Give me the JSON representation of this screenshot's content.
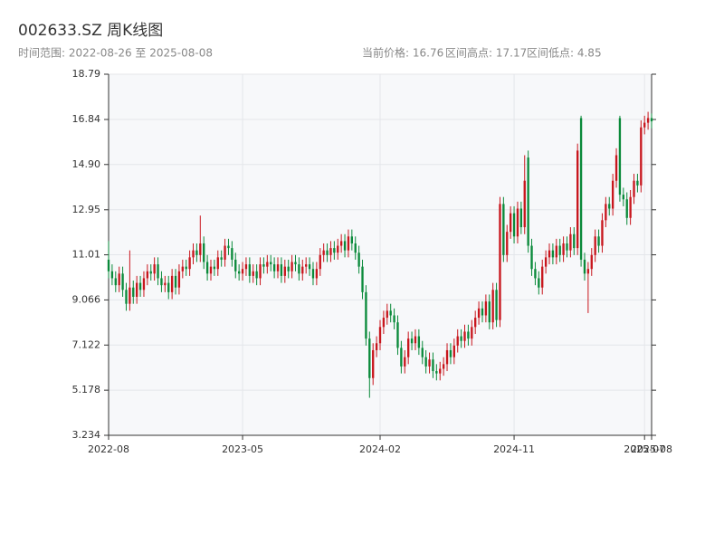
{
  "chart_data": {
    "type": "candlestick",
    "title": "002633.SZ 周K线图",
    "subtitle": "时间范围: 2022-08-26 至 2025-08-08",
    "info": [
      "当前价格: 16.76",
      "区间高点: 17.17",
      "区间低点: 4.85"
    ],
    "up_color": "#c8161d",
    "down_color": "#0a8a3a",
    "grid": true,
    "ylim": [
      3.234,
      18.79
    ],
    "yticks": [
      3.234,
      5.178,
      7.122,
      9.066,
      11.01,
      12.95,
      {
        "value": 14.9,
        "label": "14.90"
      },
      16.84,
      18.79
    ],
    "xticks": [
      {
        "value": "2022-08-26",
        "label": "2022-08"
      },
      {
        "value": "2023-05-19",
        "label": "2023-05"
      },
      {
        "value": "2024-02-16",
        "label": "2024-02"
      },
      {
        "value": "2024-11-08",
        "label": "2024-11"
      },
      {
        "value": "2025-07-25",
        "label": "2025-07"
      },
      {
        "value": "2025-08-08",
        "label": "2025-08"
      }
    ],
    "x": [
      "2022-08-26",
      "2022-09-02",
      "2022-09-09",
      "2022-09-16",
      "2022-09-23",
      "2022-09-30",
      "2022-10-07",
      "2022-10-14",
      "2022-10-21",
      "2022-10-28",
      "2022-11-04",
      "2022-11-11",
      "2022-11-18",
      "2022-11-25",
      "2022-12-02",
      "2022-12-09",
      "2022-12-16",
      "2022-12-23",
      "2022-12-30",
      "2023-01-06",
      "2023-01-13",
      "2023-01-20",
      "2023-01-27",
      "2023-02-03",
      "2023-02-10",
      "2023-02-17",
      "2023-02-24",
      "2023-03-03",
      "2023-03-10",
      "2023-03-17",
      "2023-03-24",
      "2023-03-31",
      "2023-04-07",
      "2023-04-14",
      "2023-04-21",
      "2023-04-28",
      "2023-05-05",
      "2023-05-12",
      "2023-05-19",
      "2023-05-26",
      "2023-06-02",
      "2023-06-09",
      "2023-06-16",
      "2023-06-23",
      "2023-06-30",
      "2023-07-07",
      "2023-07-14",
      "2023-07-21",
      "2023-07-28",
      "2023-08-04",
      "2023-08-11",
      "2023-08-18",
      "2023-08-25",
      "2023-09-01",
      "2023-09-08",
      "2023-09-15",
      "2023-09-22",
      "2023-09-29",
      "2023-10-06",
      "2023-10-13",
      "2023-10-20",
      "2023-10-27",
      "2023-11-03",
      "2023-11-10",
      "2023-11-17",
      "2023-11-24",
      "2023-12-01",
      "2023-12-08",
      "2023-12-15",
      "2023-12-22",
      "2023-12-29",
      "2024-01-05",
      "2024-01-12",
      "2024-01-19",
      "2024-01-26",
      "2024-02-02",
      "2024-02-09",
      "2024-02-16",
      "2024-02-23",
      "2024-03-01",
      "2024-03-08",
      "2024-03-15",
      "2024-03-22",
      "2024-03-29",
      "2024-04-05",
      "2024-04-12",
      "2024-04-19",
      "2024-04-26",
      "2024-05-03",
      "2024-05-10",
      "2024-05-17",
      "2024-05-24",
      "2024-05-31",
      "2024-06-07",
      "2024-06-14",
      "2024-06-21",
      "2024-06-28",
      "2024-07-05",
      "2024-07-12",
      "2024-07-19",
      "2024-07-26",
      "2024-08-02",
      "2024-08-09",
      "2024-08-16",
      "2024-08-23",
      "2024-08-30",
      "2024-09-06",
      "2024-09-13",
      "2024-09-20",
      "2024-09-27",
      "2024-10-04",
      "2024-10-11",
      "2024-10-18",
      "2024-10-25",
      "2024-11-01",
      "2024-11-08",
      "2024-11-15",
      "2024-11-22",
      "2024-11-29",
      "2024-12-06",
      "2024-12-13",
      "2024-12-20",
      "2024-12-27",
      "2025-01-03",
      "2025-01-10",
      "2025-01-17",
      "2025-01-24",
      "2025-01-31",
      "2025-02-07",
      "2025-02-14",
      "2025-02-21",
      "2025-02-28",
      "2025-03-07",
      "2025-03-14",
      "2025-03-21",
      "2025-03-28",
      "2025-04-04",
      "2025-04-11",
      "2025-04-18",
      "2025-04-25",
      "2025-05-02",
      "2025-05-09",
      "2025-05-16",
      "2025-05-23",
      "2025-05-30",
      "2025-06-06",
      "2025-06-13",
      "2025-06-20",
      "2025-06-27",
      "2025-07-04",
      "2025-07-11",
      "2025-07-18",
      "2025-07-25",
      "2025-08-01",
      "2025-08-08"
    ],
    "open": [
      10.8,
      10.3,
      10.0,
      9.7,
      10.2,
      9.5,
      8.9,
      9.6,
      9.2,
      9.8,
      9.5,
      10.0,
      10.3,
      10.2,
      10.6,
      10.0,
      9.7,
      9.8,
      9.4,
      10.1,
      9.6,
      10.3,
      10.5,
      10.4,
      10.9,
      11.2,
      11.0,
      11.5,
      10.7,
      10.2,
      10.5,
      10.4,
      10.9,
      10.8,
      11.4,
      11.3,
      10.8,
      10.3,
      10.2,
      10.4,
      10.6,
      10.1,
      10.3,
      10.0,
      10.6,
      10.5,
      10.7,
      10.6,
      10.3,
      10.6,
      10.1,
      10.5,
      10.3,
      10.7,
      10.6,
      10.2,
      10.5,
      10.6,
      10.4,
      10.0,
      10.4,
      11.0,
      11.2,
      11.0,
      11.3,
      11.1,
      11.4,
      11.6,
      11.2,
      11.8,
      11.5,
      11.1,
      10.5,
      9.4,
      7.4,
      5.7,
      6.9,
      7.2,
      7.9,
      8.3,
      8.6,
      8.4,
      8.1,
      7.0,
      6.2,
      6.6,
      7.4,
      7.2,
      7.5,
      7.0,
      6.6,
      6.2,
      6.5,
      6.0,
      5.9,
      6.1,
      6.3,
      6.9,
      6.6,
      7.1,
      7.5,
      7.3,
      7.7,
      7.4,
      7.9,
      8.3,
      8.7,
      8.4,
      9.0,
      8.1,
      9.5,
      8.2,
      13.2,
      11.0,
      12.0,
      12.8,
      11.8,
      13.0,
      12.2,
      15.2,
      11.4,
      10.4,
      10.0,
      9.6,
      10.5,
      10.9,
      11.2,
      10.9,
      11.4,
      11.0,
      11.5,
      11.2,
      11.9,
      11.3,
      16.9,
      10.8,
      10.2,
      10.4,
      11.0,
      11.8,
      11.4,
      12.5,
      13.2,
      13.0,
      14.2,
      16.9,
      13.6,
      13.4,
      12.6,
      13.5,
      14.2,
      14.0,
      16.5,
      16.7,
      16.9
    ],
    "high": [
      11.6,
      10.6,
      10.3,
      10.5,
      10.5,
      9.8,
      11.2,
      9.9,
      10.1,
      10.1,
      10.3,
      10.6,
      10.6,
      10.9,
      10.9,
      10.3,
      10.1,
      10.1,
      10.4,
      10.4,
      10.6,
      10.8,
      10.8,
      11.2,
      11.5,
      11.5,
      12.7,
      11.8,
      11.0,
      10.8,
      10.8,
      11.2,
      11.2,
      11.7,
      11.7,
      11.6,
      11.1,
      10.6,
      10.7,
      10.9,
      10.9,
      10.6,
      10.6,
      10.9,
      10.9,
      11.0,
      11.0,
      10.9,
      10.9,
      10.9,
      10.8,
      10.8,
      11.0,
      11.0,
      10.9,
      10.8,
      10.9,
      10.9,
      10.7,
      10.7,
      11.3,
      11.5,
      11.5,
      11.6,
      11.6,
      11.7,
      11.9,
      11.9,
      12.1,
      12.1,
      11.8,
      11.4,
      10.8,
      9.7,
      7.7,
      7.2,
      7.5,
      8.2,
      8.6,
      8.9,
      8.9,
      8.7,
      8.4,
      7.3,
      6.9,
      7.7,
      7.7,
      7.8,
      7.8,
      7.3,
      6.9,
      6.8,
      6.8,
      6.3,
      6.4,
      6.6,
      7.2,
      7.2,
      7.4,
      7.8,
      7.8,
      8.0,
      8.0,
      8.2,
      8.6,
      9.0,
      9.0,
      9.3,
      9.3,
      9.8,
      9.8,
      13.5,
      13.5,
      12.3,
      13.1,
      13.1,
      13.3,
      13.3,
      15.3,
      15.5,
      11.7,
      10.7,
      10.3,
      10.8,
      11.2,
      11.5,
      11.5,
      11.7,
      11.7,
      11.8,
      11.8,
      12.2,
      12.2,
      15.8,
      17.0,
      11.1,
      10.7,
      11.3,
      12.1,
      12.1,
      12.8,
      13.5,
      13.5,
      14.5,
      15.6,
      17.0,
      13.9,
      13.7,
      13.8,
      14.5,
      14.5,
      16.8,
      17.0,
      17.17,
      17.1
    ],
    "low": [
      10.0,
      9.7,
      9.4,
      9.4,
      9.2,
      8.6,
      8.6,
      8.9,
      8.9,
      9.2,
      9.2,
      9.7,
      9.9,
      9.9,
      9.7,
      9.4,
      9.4,
      9.1,
      9.1,
      9.3,
      9.3,
      10.0,
      10.1,
      10.1,
      10.6,
      10.7,
      10.7,
      10.4,
      9.9,
      9.9,
      10.1,
      10.1,
      10.5,
      10.5,
      11.0,
      10.5,
      10.0,
      9.9,
      9.9,
      10.1,
      9.8,
      9.8,
      9.7,
      9.7,
      10.2,
      10.2,
      10.3,
      10.0,
      10.0,
      9.8,
      9.8,
      10.0,
      10.0,
      10.3,
      9.9,
      9.9,
      10.2,
      10.1,
      9.7,
      9.7,
      10.1,
      10.7,
      10.7,
      10.7,
      10.8,
      10.8,
      11.1,
      10.9,
      10.9,
      11.2,
      10.8,
      10.2,
      9.1,
      7.1,
      4.85,
      5.4,
      6.6,
      6.9,
      7.6,
      8.0,
      8.1,
      7.8,
      6.7,
      5.9,
      5.9,
      6.3,
      6.9,
      6.9,
      6.7,
      6.3,
      5.9,
      5.9,
      5.7,
      5.6,
      5.6,
      5.8,
      6.0,
      6.3,
      6.3,
      6.8,
      7.0,
      7.0,
      7.1,
      7.1,
      7.6,
      8.0,
      8.1,
      8.1,
      7.8,
      7.8,
      7.9,
      7.9,
      10.7,
      10.7,
      11.7,
      11.5,
      11.5,
      11.9,
      11.9,
      11.1,
      10.1,
      9.7,
      9.3,
      9.3,
      10.2,
      10.6,
      10.6,
      10.6,
      10.7,
      10.7,
      10.9,
      10.9,
      11.0,
      11.0,
      10.5,
      9.9,
      8.5,
      10.1,
      10.7,
      11.1,
      11.1,
      12.2,
      12.7,
      12.7,
      13.9,
      13.3,
      13.1,
      12.3,
      12.3,
      13.2,
      13.7,
      13.7,
      16.2,
      16.4,
      16.46
    ],
    "close": [
      10.3,
      10.0,
      9.7,
      10.2,
      9.5,
      8.9,
      9.6,
      9.2,
      9.8,
      9.5,
      10.0,
      10.3,
      10.2,
      10.6,
      10.0,
      9.7,
      9.8,
      9.4,
      10.1,
      9.6,
      10.3,
      10.5,
      10.4,
      10.9,
      11.2,
      11.0,
      11.5,
      10.7,
      10.2,
      10.5,
      10.4,
      10.9,
      10.8,
      11.4,
      11.3,
      10.8,
      10.3,
      10.2,
      10.4,
      10.6,
      10.1,
      10.3,
      10.0,
      10.6,
      10.5,
      10.7,
      10.6,
      10.3,
      10.6,
      10.1,
      10.5,
      10.3,
      10.7,
      10.6,
      10.2,
      10.5,
      10.6,
      10.4,
      10.0,
      10.4,
      11.0,
      11.2,
      11.0,
      11.3,
      11.1,
      11.4,
      11.6,
      11.2,
      11.8,
      11.5,
      11.1,
      10.5,
      9.4,
      7.4,
      5.7,
      6.9,
      7.2,
      7.9,
      8.3,
      8.6,
      8.4,
      8.1,
      7.0,
      6.2,
      6.6,
      7.4,
      7.2,
      7.5,
      7.0,
      6.6,
      6.2,
      6.5,
      6.0,
      5.9,
      6.1,
      6.3,
      6.9,
      6.6,
      7.1,
      7.5,
      7.3,
      7.7,
      7.4,
      7.9,
      8.3,
      8.7,
      8.4,
      9.0,
      8.1,
      9.5,
      8.2,
      13.2,
      11.0,
      12.0,
      12.8,
      11.8,
      13.0,
      12.2,
      14.2,
      11.4,
      10.4,
      10.0,
      9.6,
      10.5,
      10.9,
      11.2,
      10.9,
      11.4,
      11.0,
      11.5,
      11.2,
      11.9,
      11.3,
      15.5,
      10.8,
      10.2,
      10.4,
      11.0,
      11.8,
      11.4,
      12.5,
      13.2,
      13.0,
      14.2,
      15.3,
      13.6,
      13.4,
      12.6,
      13.5,
      14.2,
      14.0,
      16.5,
      16.7,
      16.9,
      16.76
    ]
  }
}
